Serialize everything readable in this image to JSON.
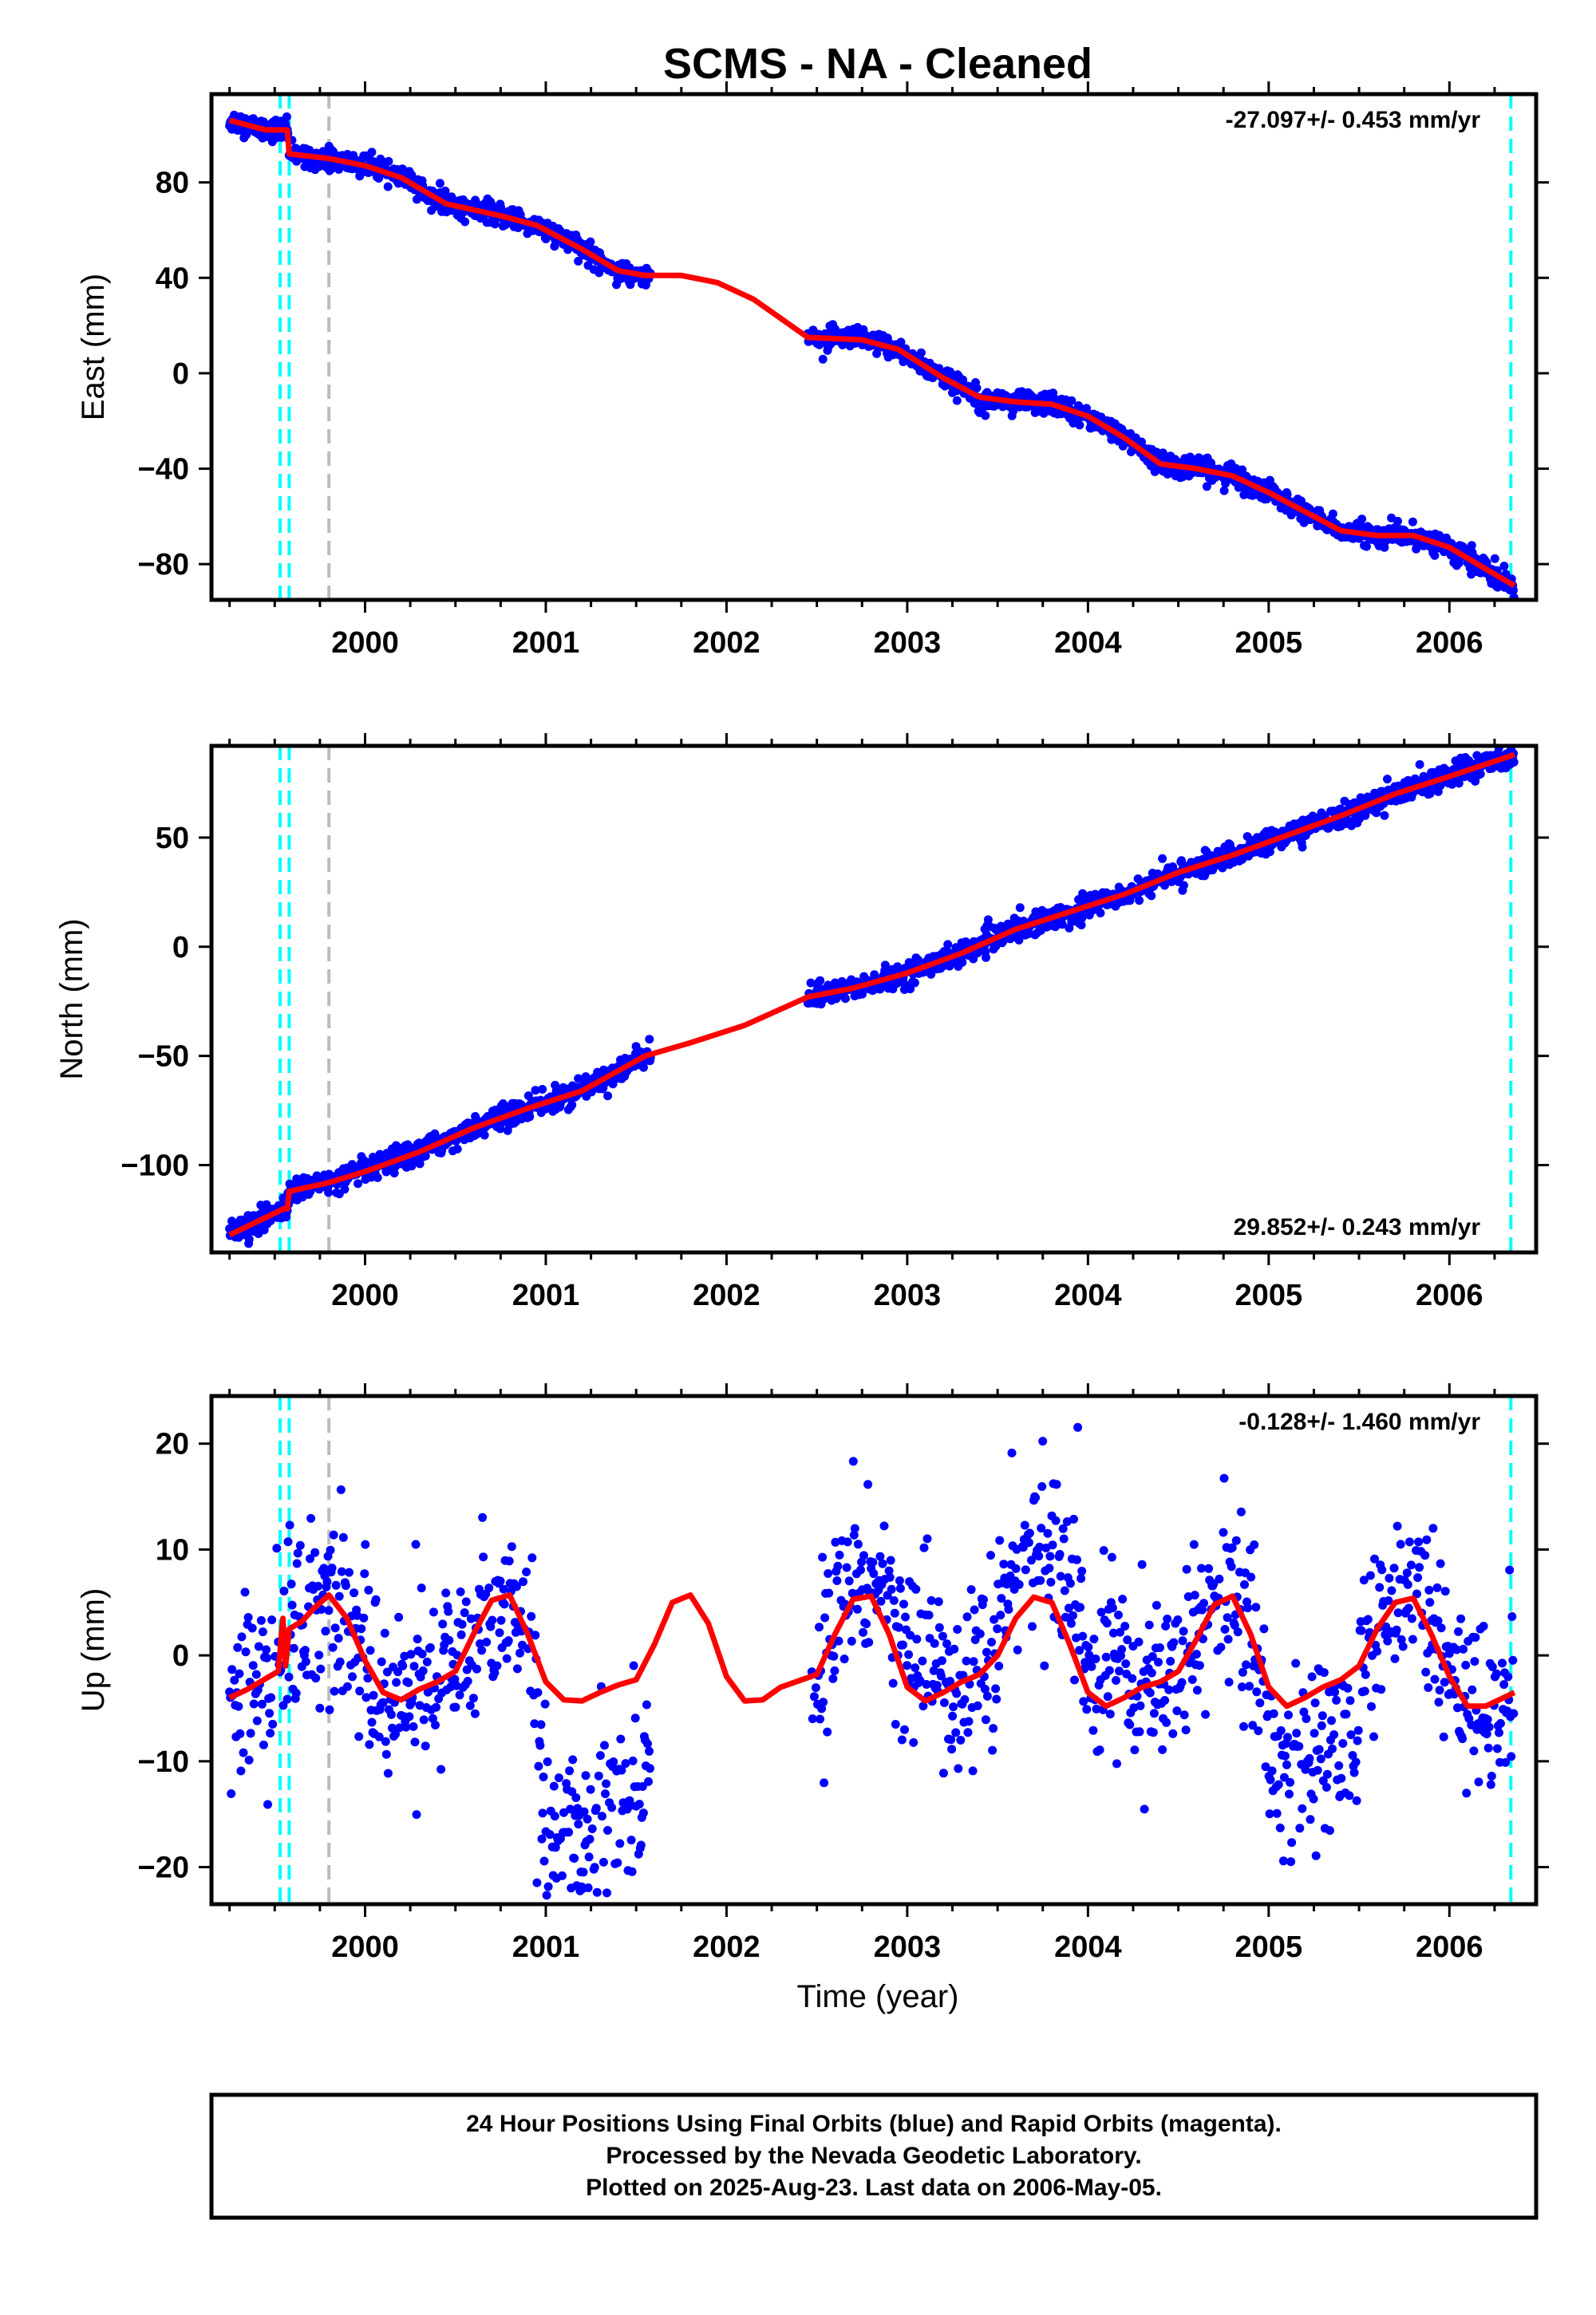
{
  "title": "SCMS  - NA - Cleaned",
  "xlabel": "Time (year)",
  "x_ticks": [
    2000,
    2001,
    2002,
    2003,
    2004,
    2005,
    2006
  ],
  "xlim": [
    1999.15,
    2006.48
  ],
  "colors": {
    "final_orbits": "#0000ff",
    "model": "#ff0000",
    "equipment_change": "#00ffff",
    "earthquake": "#bbbbbb"
  },
  "footer": {
    "line1": "24 Hour Positions Using Final Orbits (blue) and Rapid Orbits (magenta).",
    "line2": "Processed by the Nevada Geodetic Laboratory.",
    "line3": "Plotted on 2025-Aug-23. Last data on 2006-May-05."
  },
  "chart_data": [
    {
      "type": "scatter",
      "component": "east",
      "ylabel": "East (mm)",
      "ylim": [
        -95,
        117
      ],
      "y_ticks": [
        80,
        40,
        0,
        -40,
        -80
      ],
      "rate_label": "-27.097+/- 0.453 mm/yr",
      "rate_position": "top-right",
      "vlines": [
        {
          "x": 1999.53,
          "kind": "equipment_change"
        },
        {
          "x": 1999.58,
          "kind": "equipment_change"
        },
        {
          "x": 1999.8,
          "kind": "earthquake"
        },
        {
          "x": 2006.34,
          "kind": "equipment_change"
        }
      ],
      "model_x": [
        1999.25,
        1999.45,
        1999.57,
        1999.58,
        1999.8,
        2000.0,
        2000.2,
        2000.45,
        2000.75,
        2000.95,
        2001.2,
        2001.4,
        2001.55,
        2001.75,
        2001.95,
        2002.15,
        2002.45,
        2002.75,
        2002.95,
        2003.2,
        2003.4,
        2003.6,
        2003.8,
        2004.0,
        2004.2,
        2004.4,
        2004.6,
        2004.8,
        2005.0,
        2005.2,
        2005.4,
        2005.6,
        2005.8,
        2006.0,
        2006.2,
        2006.36
      ],
      "model_y": [
        106,
        102,
        102,
        92,
        90,
        87,
        82,
        71,
        66,
        62,
        52,
        43,
        41,
        41,
        38,
        31,
        15,
        14,
        10,
        -2,
        -10,
        -12,
        -13,
        -18,
        -27,
        -38,
        -40,
        -43,
        -50,
        -58,
        -66,
        -68,
        -68,
        -73,
        -82,
        -89
      ],
      "scatter_noise_mm": 2.2,
      "gap": [
        2001.58,
        2002.45
      ]
    },
    {
      "type": "scatter",
      "component": "north",
      "ylabel": "North (mm)",
      "ylim": [
        -140,
        92
      ],
      "y_ticks": [
        50,
        0,
        -50,
        -100
      ],
      "rate_label": "29.852+/- 0.243 mm/yr",
      "rate_position": "bottom-right",
      "vlines": [
        {
          "x": 1999.53,
          "kind": "equipment_change"
        },
        {
          "x": 1999.58,
          "kind": "equipment_change"
        },
        {
          "x": 1999.8,
          "kind": "earthquake"
        },
        {
          "x": 2006.34,
          "kind": "equipment_change"
        }
      ],
      "model_x": [
        1999.25,
        1999.55,
        1999.57,
        1999.58,
        1999.8,
        2000.0,
        2000.3,
        2000.6,
        2000.9,
        2001.2,
        2001.55,
        2001.8,
        2002.1,
        2002.45,
        2002.7,
        2003.0,
        2003.3,
        2003.6,
        2003.9,
        2004.2,
        2004.5,
        2004.8,
        2005.1,
        2005.4,
        2005.7,
        2006.0,
        2006.36
      ],
      "model_y": [
        -132,
        -120,
        -120,
        -112,
        -108,
        -103,
        -94,
        -83,
        -74,
        -66,
        -50,
        -44,
        -36,
        -23,
        -19,
        -12,
        -3,
        8,
        16,
        24,
        34,
        42,
        51,
        60,
        70,
        78,
        88
      ],
      "scatter_noise_mm": 2.6,
      "gap": [
        2001.58,
        2002.45
      ]
    },
    {
      "type": "scatter",
      "component": "up",
      "ylabel": "Up (mm)",
      "ylim": [
        -23.5,
        24.5
      ],
      "y_ticks": [
        20,
        10,
        0,
        -10,
        -20
      ],
      "rate_label": "-0.128+/- 1.460 mm/yr",
      "rate_position": "top-right",
      "vlines": [
        {
          "x": 1999.53,
          "kind": "equipment_change"
        },
        {
          "x": 1999.58,
          "kind": "equipment_change"
        },
        {
          "x": 1999.8,
          "kind": "earthquake"
        },
        {
          "x": 2006.34,
          "kind": "equipment_change"
        }
      ],
      "model_x": [
        1999.25,
        1999.35,
        1999.45,
        1999.52,
        1999.545,
        1999.56,
        1999.58,
        1999.65,
        1999.72,
        1999.8,
        1999.9,
        2000.0,
        2000.1,
        2000.2,
        2000.3,
        2000.4,
        2000.5,
        2000.6,
        2000.7,
        2000.8,
        2000.9,
        2001.0,
        2001.1,
        2001.2,
        2001.3,
        2001.4,
        2001.5,
        2001.6,
        2001.7,
        2001.8,
        2001.9,
        2002.0,
        2002.1,
        2002.2,
        2002.3,
        2002.4,
        2002.5,
        2002.6,
        2002.7,
        2002.8,
        2002.9,
        2003.0,
        2003.1,
        2003.2,
        2003.3,
        2003.4,
        2003.5,
        2003.6,
        2003.7,
        2003.8,
        2003.9,
        2004.0,
        2004.1,
        2004.2,
        2004.3,
        2004.4,
        2004.5,
        2004.6,
        2004.7,
        2004.8,
        2004.9,
        2005.0,
        2005.1,
        2005.2,
        2005.3,
        2005.4,
        2005.5,
        2005.6,
        2005.7,
        2005.8,
        2005.9,
        2006.0,
        2006.1,
        2006.2,
        2006.3,
        2006.36
      ],
      "model_y": [
        -4,
        -3.2,
        -2.2,
        -1.5,
        3.5,
        -1.0,
        2.5,
        3.2,
        4.5,
        5.7,
        3.5,
        -0.5,
        -3.5,
        -4.2,
        -3.2,
        -2.5,
        -1.5,
        2.0,
        5.2,
        5.7,
        2.0,
        -2.5,
        -4.2,
        -4.3,
        -3.5,
        -2.8,
        -2.3,
        1.0,
        5.0,
        5.7,
        3.0,
        -2.0,
        -4.3,
        -4.2,
        -3.0,
        -2.4,
        -1.8,
        2.0,
        5.3,
        5.6,
        2.0,
        -3.0,
        -4.3,
        -3.5,
        -2.5,
        -1.8,
        0.0,
        3.5,
        5.5,
        5.0,
        1.0,
        -3.5,
        -4.8,
        -4.0,
        -3.0,
        -2.5,
        -1.5,
        1.5,
        4.8,
        5.6,
        2.0,
        -3.0,
        -4.8,
        -4.0,
        -3.0,
        -2.3,
        -1.0,
        2.5,
        5.0,
        5.4,
        2.0,
        -2.0,
        -4.8,
        -4.8,
        -4.0,
        -3.5
      ],
      "scatter_noise_mm": 4.2,
      "scatter_offsets": [
        {
          "from": 2000.95,
          "to": 2001.6,
          "offset": -12.0
        },
        {
          "from": 2002.62,
          "to": 2003.2,
          "offset": 3.5
        },
        {
          "from": 2003.5,
          "to": 2004.2,
          "offset": 4.5
        },
        {
          "from": 2004.95,
          "to": 2005.5,
          "offset": -6.0
        }
      ],
      "gap": [
        2001.58,
        2002.45
      ]
    }
  ]
}
